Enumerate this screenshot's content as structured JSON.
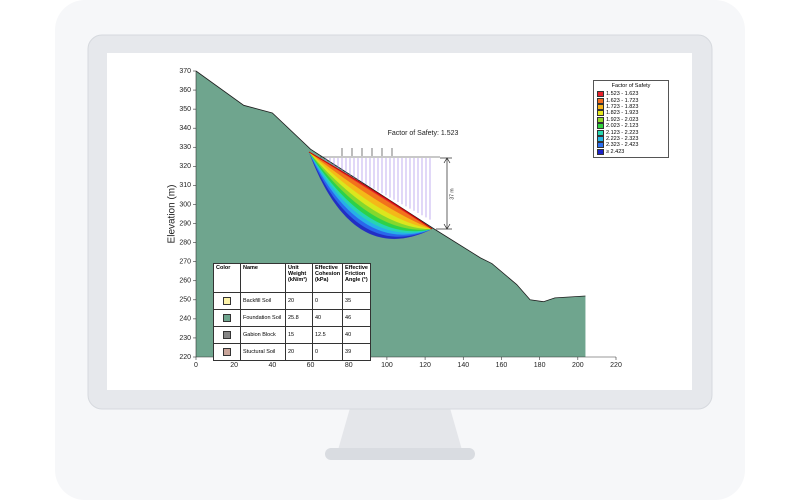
{
  "chart_data": {
    "type": "slope",
    "y_label": "Elevation (m)",
    "annotation": "Factor of Safety: 1.523",
    "dimension_label": "37 m",
    "xlim": [
      0,
      220
    ],
    "ylim": [
      220,
      370
    ],
    "xticks": [
      0,
      20,
      40,
      60,
      80,
      100,
      120,
      140,
      160,
      180,
      200,
      220
    ],
    "yticks": [
      220,
      230,
      240,
      250,
      260,
      270,
      280,
      290,
      300,
      310,
      320,
      330,
      340,
      350,
      360,
      370
    ],
    "profile": {
      "color": "#6fa58e",
      "x": [
        0,
        25,
        40,
        60,
        125,
        149,
        155,
        168,
        175,
        182,
        188,
        204
      ],
      "y": [
        370,
        352,
        348,
        329,
        287,
        272,
        269,
        258,
        250,
        249,
        251,
        252
      ]
    },
    "fos_legend": {
      "title": "Factor of Safety",
      "items": [
        {
          "label": "1.523 - 1.623",
          "color": "#e8202a"
        },
        {
          "label": "1.623 - 1.723",
          "color": "#f26b1d"
        },
        {
          "label": "1.723 - 1.823",
          "color": "#f7b518"
        },
        {
          "label": "1.823 - 1.923",
          "color": "#e6e81c"
        },
        {
          "label": "1.923 - 2.023",
          "color": "#8fd92a"
        },
        {
          "label": "2.023 - 2.123",
          "color": "#2ed13e"
        },
        {
          "label": "2.123 - 2.223",
          "color": "#26d9b0"
        },
        {
          "label": "2.223 - 2.323",
          "color": "#27b8e8"
        },
        {
          "label": "2.323 - 2.423",
          "color": "#2b6ef0"
        },
        {
          "label": "≥ 2.423",
          "color": "#1b22c9"
        }
      ]
    },
    "materials": {
      "headers": [
        "Color",
        "Name",
        "Unit Weight (kN/m³)",
        "Effective Cohesion (kPa)",
        "Effective Friction Angle (°)"
      ],
      "rows": [
        {
          "color": "#fdf3a8",
          "name": "Backfill Soil",
          "unit_weight": 20,
          "cohesion": 0,
          "friction": 35
        },
        {
          "color": "#6fa58e",
          "name": "Foundation Soil",
          "unit_weight": 25.8,
          "cohesion": 40,
          "friction": 46
        },
        {
          "color": "#858585",
          "name": "Gabion Block",
          "unit_weight": 15,
          "cohesion": 12.5,
          "friction": 40
        },
        {
          "color": "#c9a59a",
          "name": "Stuctural Soil",
          "unit_weight": 20,
          "cohesion": 0,
          "friction": 39
        }
      ]
    }
  }
}
